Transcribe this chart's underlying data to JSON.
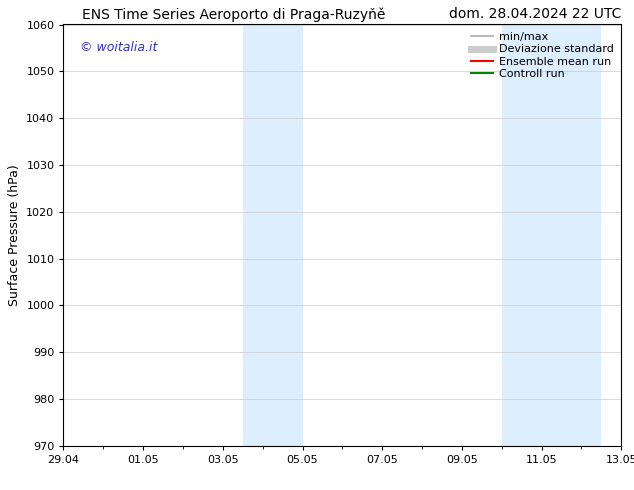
{
  "title_left": "ENS Time Series Aeroporto di Praga-Ruzyňě",
  "title_right": "dom. 28.04.2024 22 UTC",
  "ylabel": "Surface Pressure (hPa)",
  "ylim": [
    970,
    1060
  ],
  "yticks": [
    970,
    980,
    990,
    1000,
    1010,
    1020,
    1030,
    1040,
    1050,
    1060
  ],
  "xtick_labels": [
    "29.04",
    "01.05",
    "03.05",
    "05.05",
    "07.05",
    "09.05",
    "11.05",
    "13.05"
  ],
  "xtick_count": 8,
  "xmin": 0,
  "xmax": 14,
  "shaded_bands": [
    {
      "xstart": 4.5,
      "xend": 6.0
    },
    {
      "xstart": 11.0,
      "xend": 13.5
    }
  ],
  "shaded_color": "#ddeeff",
  "thin_blue_line_x": 0.0,
  "watermark": "© woitalia.it",
  "watermark_color": "#3333cc",
  "legend_items": [
    {
      "label": "min/max",
      "color": "#aaaaaa",
      "lw": 1.2
    },
    {
      "label": "Deviazione standard",
      "color": "#cccccc",
      "lw": 5
    },
    {
      "label": "Ensemble mean run",
      "color": "#ff0000",
      "lw": 1.5
    },
    {
      "label": "Controll run",
      "color": "#008800",
      "lw": 1.5
    }
  ],
  "bg_color": "#ffffff",
  "grid_color": "#cccccc",
  "title_fontsize": 10,
  "ylabel_fontsize": 9,
  "tick_fontsize": 8,
  "legend_fontsize": 8,
  "watermark_fontsize": 9
}
